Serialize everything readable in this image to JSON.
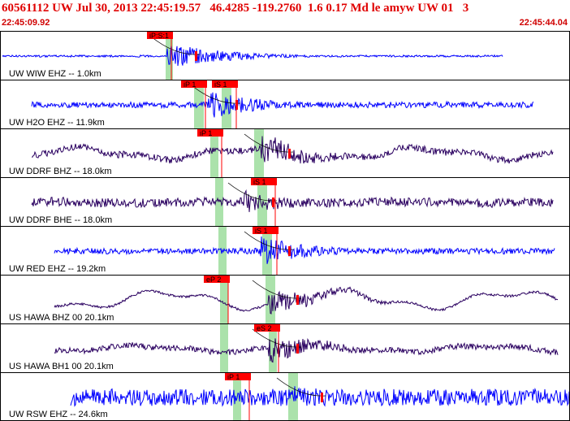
{
  "header": {
    "title": "60561112 UW Jul 30, 2013 22:45:19.57   46.4285 -119.2760  1.6 0.17 Md le amyw UW 01   3",
    "start_time": "22:45:09.92",
    "end_time": "22:45:44.04"
  },
  "colors": {
    "blue_trace": "#0000ff",
    "dark_trace": "#2a0060",
    "pick": "#ff0000",
    "window": "#8fd88f"
  },
  "channels": [
    {
      "label": "UW WIW EHZ -- 1.0km",
      "trace": "blue",
      "picks": [
        "iP:S:1"
      ]
    },
    {
      "label": "UW H2O EHZ -- 11.9km",
      "trace": "blue",
      "picks": [
        "iP 1",
        "iS 1"
      ]
    },
    {
      "label": "UW DDRF BHZ -- 18.0km",
      "trace": "dark",
      "picks": [
        "iP 1"
      ]
    },
    {
      "label": "UW DDRF BHE -- 18.0km",
      "trace": "dark",
      "picks": [
        "iS 1"
      ]
    },
    {
      "label": "UW RED EHZ -- 19.2km",
      "trace": "blue",
      "picks": [
        "iS 1"
      ]
    },
    {
      "label": "US HAWA BHZ 00 20.1km",
      "trace": "dark",
      "picks": [
        "eP 2"
      ]
    },
    {
      "label": "US HAWA BH1 00 20.1km",
      "trace": "dark",
      "picks": [
        "eS 2"
      ]
    },
    {
      "label": "UW RSW EHZ -- 24.6km",
      "trace": "blue",
      "picks": [
        "iP 1"
      ]
    }
  ]
}
